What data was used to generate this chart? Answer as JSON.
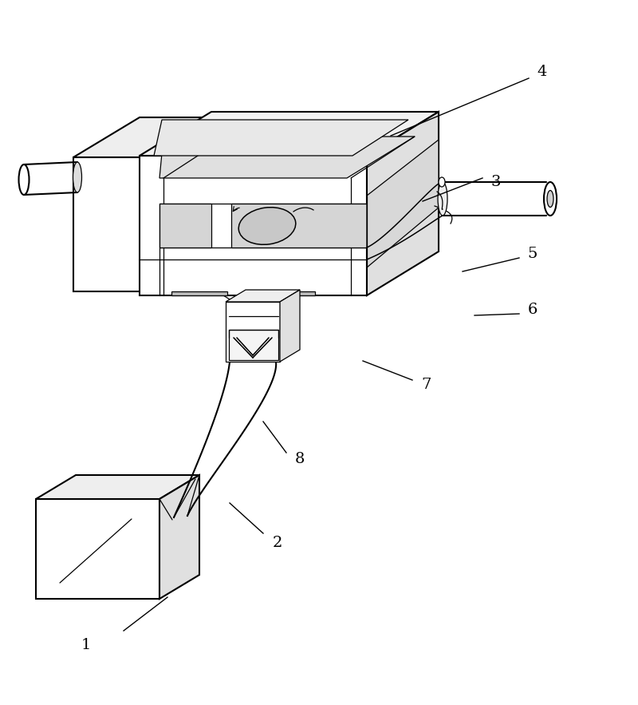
{
  "bg_color": "#ffffff",
  "line_color": "#000000",
  "lw_main": 1.5,
  "lw_detail": 0.9,
  "fig_width": 8.0,
  "fig_height": 8.83,
  "dpi": 100
}
